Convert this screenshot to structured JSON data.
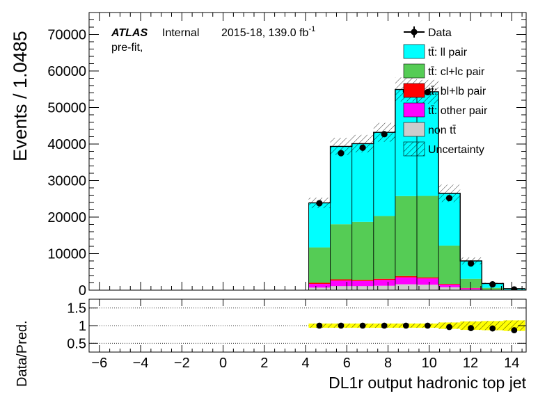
{
  "chart_data": {
    "type": "bar",
    "stacked": true,
    "labels": {
      "atlas": "ATLAS",
      "internal": "Internal",
      "lumi": "2015-18, 139.0 fb",
      "lumi_sup": "-1",
      "prefit": "pre-fit,"
    },
    "main": {
      "ylabel": "Events / 1.0485",
      "ylim": [
        0,
        76000
      ],
      "yticks": [
        0,
        10000,
        20000,
        30000,
        40000,
        50000,
        60000,
        70000
      ],
      "ytick_labels": [
        "0",
        "10000",
        "20000",
        "30000",
        "40000",
        "50000",
        "60000",
        "70000"
      ]
    },
    "ratio": {
      "ylabel": "Data/Pred.",
      "ylim": [
        0.25,
        1.75
      ],
      "yticks": [
        0.5,
        1,
        1.5
      ],
      "ytick_labels": [
        "0.5",
        "1",
        "1.5"
      ]
    },
    "x": {
      "xlabel": "DL1r output hadronic top jet",
      "xlim": [
        -6.5,
        14.7
      ],
      "xticks": [
        -6,
        -4,
        -2,
        0,
        2,
        4,
        6,
        8,
        10,
        12,
        14
      ],
      "xtick_labels": [
        "−6",
        "−4",
        "−2",
        "0",
        "2",
        "4",
        "6",
        "8",
        "10",
        "12",
        "14"
      ]
    },
    "bin_edges": [
      4.15,
      5.2,
      6.25,
      7.3,
      8.35,
      9.4,
      10.45,
      11.5,
      12.55,
      13.6,
      14.65
    ],
    "series": [
      {
        "name": "non t̅t̅",
        "legend_label": "non tt̄",
        "color": "#cccccc",
        "values": [
          700,
          1100,
          1100,
          1200,
          1600,
          1500,
          800,
          200,
          40,
          10
        ]
      },
      {
        "name": "tt̄: other pair",
        "color": "#ff00ff",
        "values": [
          1000,
          1500,
          1400,
          1600,
          1900,
          1700,
          700,
          300,
          60,
          10
        ]
      },
      {
        "name": "tt̄: bl+lb pair",
        "color": "#ff0000",
        "values": [
          300,
          350,
          300,
          300,
          350,
          300,
          200,
          100,
          30,
          5
        ]
      },
      {
        "name": "tt̄: cl+lc pair",
        "color": "#55cc55",
        "values": [
          9700,
          15100,
          15900,
          17200,
          21900,
          22300,
          10500,
          2500,
          500,
          100
        ]
      },
      {
        "name": "tt̄: ll pair",
        "color": "#00ffff",
        "values": [
          12200,
          21300,
          21400,
          22900,
          29200,
          28500,
          14300,
          4900,
          1200,
          300
        ]
      }
    ],
    "uncertainty_frac": [
      0.06,
      0.06,
      0.06,
      0.06,
      0.06,
      0.06,
      0.09,
      0.12,
      0.13,
      0.15
    ],
    "data": {
      "name": "Data",
      "x": [
        4.67,
        5.72,
        6.77,
        7.82,
        8.87,
        9.92,
        10.97,
        12.02,
        13.07,
        14.12
      ],
      "values": [
        23800,
        37500,
        39000,
        42700,
        54500,
        54200,
        25200,
        7300,
        1600,
        200
      ]
    },
    "ratio_points": [
      1.0,
      1.0,
      1.0,
      1.0,
      1.0,
      1.0,
      0.96,
      0.93,
      0.92,
      0.87
    ],
    "legend": [
      {
        "label": "Data",
        "kind": "data"
      },
      {
        "label": "t t̅: ll pair",
        "text": "tt̄: ll pair",
        "color": "#00ffff",
        "kind": "fill"
      },
      {
        "label": "tt̄: cl+lc pair",
        "text": "tt̄: cl+lc pair",
        "color": "#55cc55",
        "kind": "fill"
      },
      {
        "label": "tt̄: bl+lb pair",
        "text": "tt̄: bl+lb pair",
        "color": "#ff0000",
        "kind": "fill"
      },
      {
        "label": "tt̄: other pair",
        "text": "tt̄: other pair",
        "color": "#ff00ff",
        "kind": "fill"
      },
      {
        "label": "non tt̄",
        "text": "non tt̄",
        "color": "#cccccc",
        "kind": "fill"
      },
      {
        "label": "Uncertainty",
        "text": "Uncertainty",
        "kind": "hatch"
      }
    ],
    "legend_placement": "top-right",
    "grid": false
  }
}
